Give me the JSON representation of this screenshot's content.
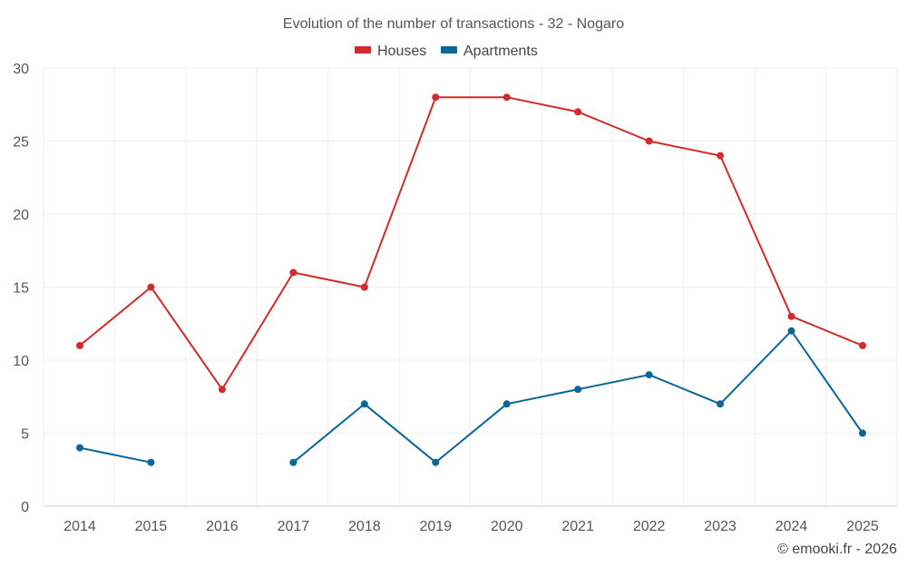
{
  "chart_data": {
    "type": "line",
    "title": "Evolution of the number of transactions - 32 - Nogaro",
    "xlabel": "",
    "ylabel": "",
    "categories": [
      "2014",
      "2015",
      "2016",
      "2017",
      "2018",
      "2019",
      "2020",
      "2021",
      "2022",
      "2023",
      "2024",
      "2025"
    ],
    "ylim": [
      0,
      30
    ],
    "yticks": [
      0,
      5,
      10,
      15,
      20,
      25,
      30
    ],
    "grid": true,
    "legend_position": "top-center",
    "series": [
      {
        "name": "Houses",
        "color": "#d42a2a",
        "values": [
          11,
          15,
          8,
          16,
          15,
          28,
          28,
          27,
          25,
          24,
          13,
          11
        ]
      },
      {
        "name": "Apartments",
        "color": "#0b6699",
        "values": [
          4,
          3,
          null,
          3,
          7,
          3,
          7,
          8,
          9,
          7,
          12,
          5
        ]
      }
    ]
  },
  "credit": "© emooki.fr - 2026"
}
